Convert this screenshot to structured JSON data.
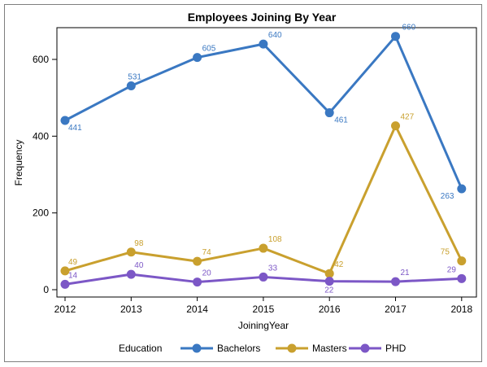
{
  "chart_data": {
    "type": "line",
    "title": "Employees Joining By Year",
    "xlabel": "JoiningYear",
    "ylabel": "Frequency",
    "x": [
      "2012",
      "2013",
      "2014",
      "2015",
      "2016",
      "2017",
      "2018"
    ],
    "yticks": [
      "0",
      "200",
      "400",
      "600"
    ],
    "ylim": [
      0,
      680
    ],
    "grid": false,
    "legend": {
      "title": "Education",
      "placement": "bottom",
      "items": [
        "Bachelors",
        "Masters",
        "PHD"
      ]
    },
    "series": [
      {
        "name": "Bachelors",
        "color": "#3a78c2",
        "values": [
          441,
          531,
          605,
          640,
          461,
          660,
          263
        ],
        "labels": [
          "441",
          "531",
          "605",
          "640",
          "461",
          "660",
          "263"
        ]
      },
      {
        "name": "Masters",
        "color": "#c9a02e",
        "values": [
          49,
          98,
          74,
          108,
          42,
          427,
          75
        ],
        "labels": [
          "49",
          "98",
          "74",
          "108",
          "42",
          "427",
          "75"
        ]
      },
      {
        "name": "PHD",
        "color": "#7c57c6",
        "values": [
          14,
          40,
          20,
          33,
          22,
          21,
          29
        ],
        "labels": [
          "14",
          "40",
          "20",
          "33",
          "22",
          "21",
          "29"
        ]
      }
    ]
  }
}
